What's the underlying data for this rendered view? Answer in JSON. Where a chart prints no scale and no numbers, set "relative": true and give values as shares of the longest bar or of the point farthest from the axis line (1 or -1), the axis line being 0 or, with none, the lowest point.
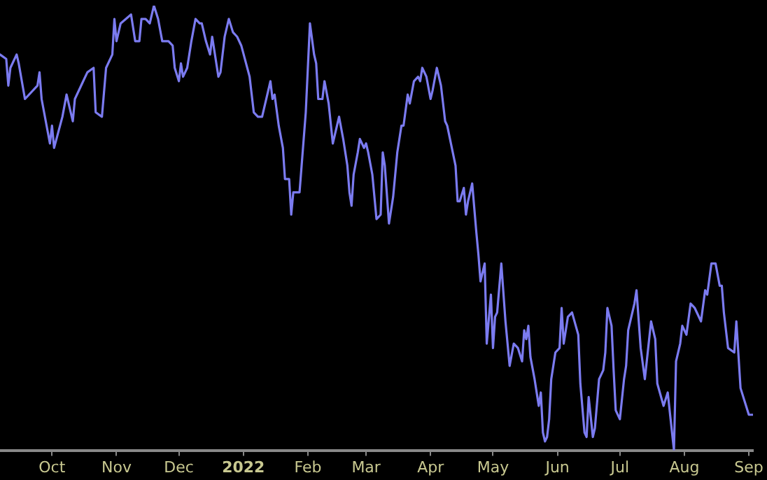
{
  "chart_data": {
    "type": "line",
    "relative": true,
    "grid": false,
    "legend": false,
    "marker": "none",
    "line_style": "solid",
    "tick_labels": "x",
    "xlim": [
      "2021-09-06",
      "2022-09-03"
    ],
    "xticks": [
      {
        "value": "2021-10-01",
        "label": "Oct"
      },
      {
        "value": "2021-11-01",
        "label": "Nov"
      },
      {
        "value": "2021-12-01",
        "label": "Dec"
      },
      {
        "value": "2022-01-01",
        "label": "2022"
      },
      {
        "value": "2022-02-01",
        "label": "Feb"
      },
      {
        "value": "2022-03-01",
        "label": "Mar"
      },
      {
        "value": "2022-04-01",
        "label": "Apr"
      },
      {
        "value": "2022-05-01",
        "label": "May"
      },
      {
        "value": "2022-06-01",
        "label": "Jun"
      },
      {
        "value": "2022-07-01",
        "label": "Jul"
      },
      {
        "value": "2022-08-01",
        "label": "Aug"
      },
      {
        "value": "2022-09-01",
        "label": "Sep"
      }
    ],
    "x": [
      "2021-09-06",
      "2021-09-09",
      "2021-09-10",
      "2021-09-11",
      "2021-09-14",
      "2021-09-15",
      "2021-09-18",
      "2021-09-24",
      "2021-09-25",
      "2021-09-26",
      "2021-09-30",
      "2021-10-01",
      "2021-10-02",
      "2021-10-06",
      "2021-10-08",
      "2021-10-11",
      "2021-10-12",
      "2021-10-16",
      "2021-10-18",
      "2021-10-21",
      "2021-10-22",
      "2021-10-25",
      "2021-10-27",
      "2021-10-30",
      "2021-10-31",
      "2021-11-01",
      "2021-11-03",
      "2021-11-08",
      "2021-11-10",
      "2021-11-12",
      "2021-11-13",
      "2021-11-15",
      "2021-11-17",
      "2021-11-19",
      "2021-11-21",
      "2021-11-23",
      "2021-11-26",
      "2021-11-28",
      "2021-11-29",
      "2021-12-01",
      "2021-12-02",
      "2021-12-03",
      "2021-12-05",
      "2021-12-07",
      "2021-12-09",
      "2021-12-11",
      "2021-12-12",
      "2021-12-14",
      "2021-12-16",
      "2021-12-17",
      "2021-12-18",
      "2021-12-20",
      "2021-12-21",
      "2021-12-23",
      "2021-12-25",
      "2021-12-27",
      "2021-12-29",
      "2021-12-31",
      "2022-01-04",
      "2022-01-06",
      "2022-01-08",
      "2022-01-10",
      "2022-01-13",
      "2022-01-14",
      "2022-01-15",
      "2022-01-16",
      "2022-01-18",
      "2022-01-20",
      "2022-01-21",
      "2022-01-23",
      "2022-01-24",
      "2022-01-25",
      "2022-01-28",
      "2022-01-29",
      "2022-01-31",
      "2022-02-02",
      "2022-02-04",
      "2022-02-05",
      "2022-02-06",
      "2022-02-08",
      "2022-02-09",
      "2022-02-11",
      "2022-02-13",
      "2022-02-15",
      "2022-02-16",
      "2022-02-18",
      "2022-02-20",
      "2022-02-21",
      "2022-02-22",
      "2022-02-23",
      "2022-02-25",
      "2022-02-26",
      "2022-02-28",
      "2022-03-01",
      "2022-03-02",
      "2022-03-04",
      "2022-03-06",
      "2022-03-08",
      "2022-03-09",
      "2022-03-10",
      "2022-03-12",
      "2022-03-14",
      "2022-03-16",
      "2022-03-18",
      "2022-03-19",
      "2022-03-21",
      "2022-03-22",
      "2022-03-24",
      "2022-03-26",
      "2022-03-27",
      "2022-03-28",
      "2022-03-30",
      "2022-04-01",
      "2022-04-02",
      "2022-04-04",
      "2022-04-06",
      "2022-04-08",
      "2022-04-09",
      "2022-04-13",
      "2022-04-14",
      "2022-04-15",
      "2022-04-17",
      "2022-04-18",
      "2022-04-19",
      "2022-04-21",
      "2022-04-23",
      "2022-04-24",
      "2022-04-25",
      "2022-04-27",
      "2022-04-28",
      "2022-04-30",
      "2022-05-01",
      "2022-05-02",
      "2022-05-03",
      "2022-05-05",
      "2022-05-07",
      "2022-05-09",
      "2022-05-11",
      "2022-05-13",
      "2022-05-15",
      "2022-05-16",
      "2022-05-17",
      "2022-05-18",
      "2022-05-19",
      "2022-05-21",
      "2022-05-23",
      "2022-05-24",
      "2022-05-25",
      "2022-05-26",
      "2022-05-27",
      "2022-05-28",
      "2022-05-29",
      "2022-05-31",
      "2022-06-02",
      "2022-06-03",
      "2022-06-04",
      "2022-06-06",
      "2022-06-08",
      "2022-06-11",
      "2022-06-12",
      "2022-06-14",
      "2022-06-15",
      "2022-06-16",
      "2022-06-18",
      "2022-06-19",
      "2022-06-21",
      "2022-06-23",
      "2022-06-24",
      "2022-06-25",
      "2022-06-27",
      "2022-06-28",
      "2022-06-29",
      "2022-07-01",
      "2022-07-03",
      "2022-07-04",
      "2022-07-05",
      "2022-07-08",
      "2022-07-09",
      "2022-07-11",
      "2022-07-13",
      "2022-07-16",
      "2022-07-18",
      "2022-07-19",
      "2022-07-22",
      "2022-07-24",
      "2022-07-27",
      "2022-07-28",
      "2022-07-30",
      "2022-07-31",
      "2022-08-02",
      "2022-08-04",
      "2022-08-06",
      "2022-08-09",
      "2022-08-11",
      "2022-08-12",
      "2022-08-14",
      "2022-08-16",
      "2022-08-18",
      "2022-08-19",
      "2022-08-20",
      "2022-08-22",
      "2022-08-25",
      "2022-08-26",
      "2022-08-28",
      "2022-08-30",
      "2022-09-01",
      "2022-09-03"
    ],
    "series": [
      {
        "color": "#7b7bf0",
        "values": [
          0.89,
          0.88,
          0.82,
          0.86,
          0.89,
          0.87,
          0.79,
          0.82,
          0.85,
          0.79,
          0.69,
          0.73,
          0.68,
          0.75,
          0.8,
          0.74,
          0.79,
          0.83,
          0.85,
          0.86,
          0.76,
          0.75,
          0.86,
          0.89,
          0.97,
          0.92,
          0.96,
          0.98,
          0.92,
          0.92,
          0.97,
          0.97,
          0.96,
          1.0,
          0.97,
          0.92,
          0.92,
          0.91,
          0.86,
          0.83,
          0.87,
          0.84,
          0.86,
          0.92,
          0.97,
          0.96,
          0.96,
          0.92,
          0.89,
          0.93,
          0.9,
          0.84,
          0.85,
          0.93,
          0.97,
          0.94,
          0.93,
          0.91,
          0.84,
          0.76,
          0.75,
          0.75,
          0.81,
          0.83,
          0.79,
          0.8,
          0.73,
          0.68,
          0.61,
          0.61,
          0.53,
          0.58,
          0.58,
          0.64,
          0.76,
          0.96,
          0.89,
          0.87,
          0.79,
          0.79,
          0.83,
          0.78,
          0.69,
          0.73,
          0.75,
          0.7,
          0.64,
          0.58,
          0.55,
          0.62,
          0.67,
          0.7,
          0.68,
          0.69,
          0.67,
          0.62,
          0.52,
          0.53,
          0.67,
          0.64,
          0.51,
          0.57,
          0.67,
          0.73,
          0.73,
          0.8,
          0.78,
          0.83,
          0.84,
          0.83,
          0.86,
          0.84,
          0.79,
          0.81,
          0.86,
          0.82,
          0.74,
          0.73,
          0.64,
          0.56,
          0.56,
          0.59,
          0.53,
          0.56,
          0.6,
          0.49,
          0.44,
          0.38,
          0.42,
          0.24,
          0.35,
          0.23,
          0.3,
          0.31,
          0.42,
          0.29,
          0.19,
          0.24,
          0.23,
          0.2,
          0.27,
          0.25,
          0.28,
          0.21,
          0.16,
          0.1,
          0.13,
          0.04,
          0.02,
          0.03,
          0.07,
          0.16,
          0.22,
          0.23,
          0.32,
          0.24,
          0.3,
          0.31,
          0.26,
          0.15,
          0.04,
          0.03,
          0.12,
          0.03,
          0.05,
          0.16,
          0.18,
          0.22,
          0.32,
          0.28,
          0.18,
          0.09,
          0.07,
          0.16,
          0.19,
          0.27,
          0.33,
          0.36,
          0.23,
          0.16,
          0.29,
          0.25,
          0.15,
          0.1,
          0.13,
          0,
          0.2,
          0.24,
          0.28,
          0.26,
          0.33,
          0.32,
          0.29,
          0.36,
          0.35,
          0.42,
          0.42,
          0.37,
          0.37,
          0.31,
          0.23,
          0.22,
          0.29,
          0.14,
          0.11,
          0.08,
          0.08
        ]
      }
    ]
  }
}
